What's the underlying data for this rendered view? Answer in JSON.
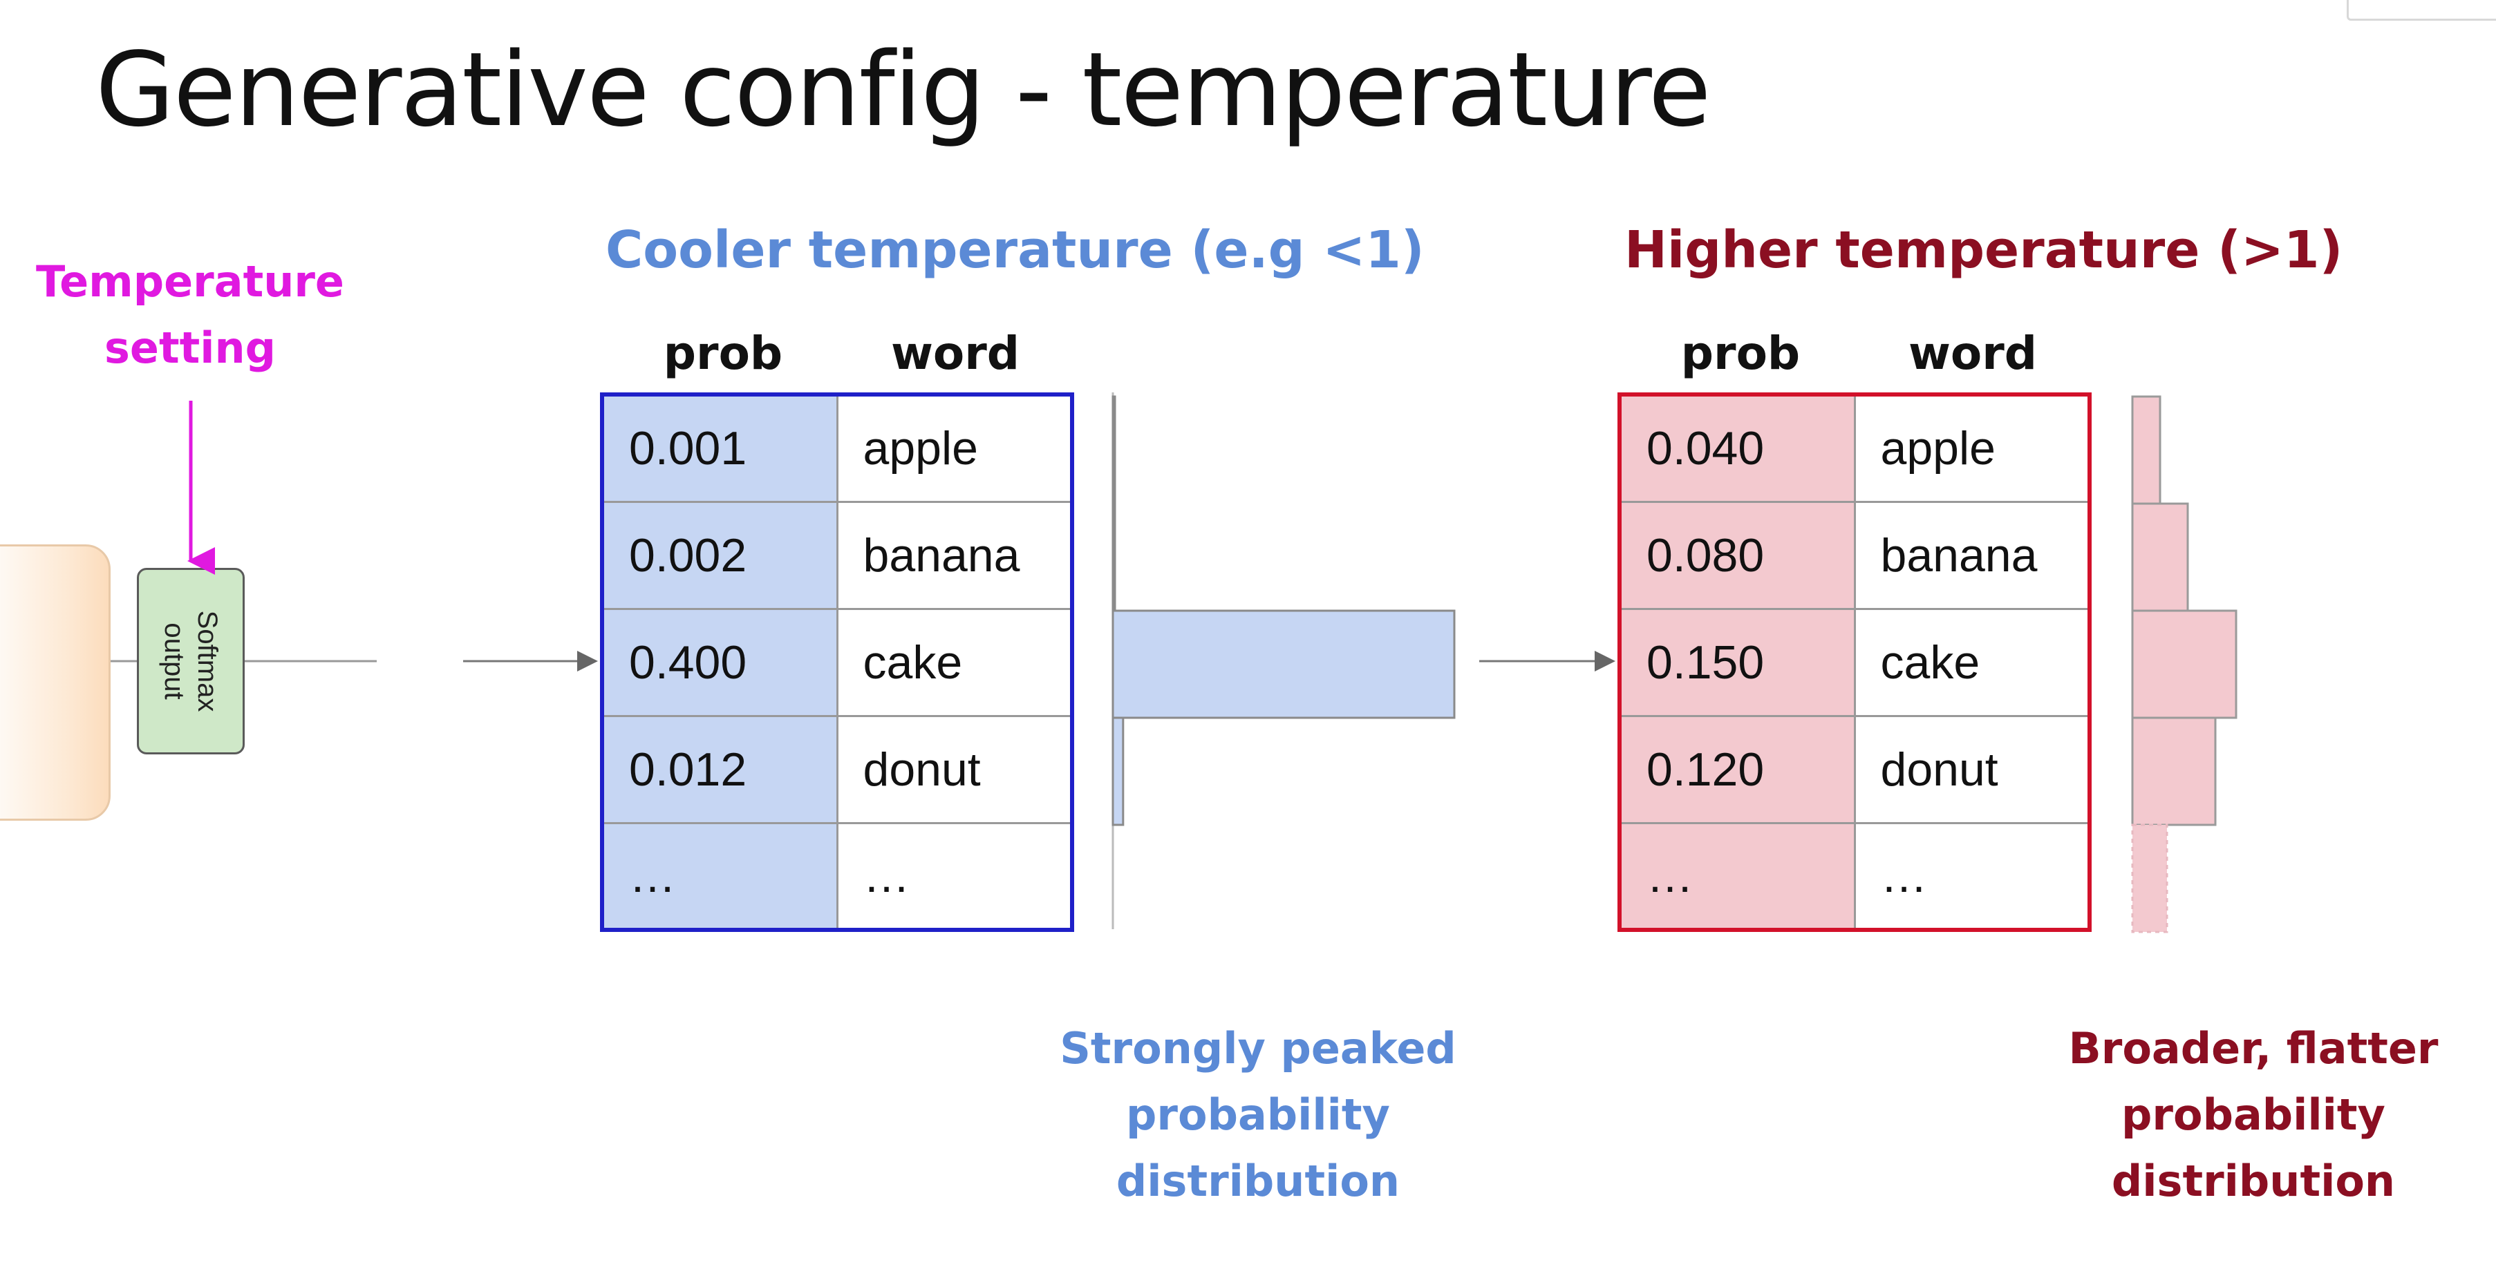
{
  "title": "Generative config - temperature",
  "temperature_setting": {
    "line1": "Temperature",
    "line2": "setting"
  },
  "softmax": {
    "line1": "Softmax",
    "line2": "output"
  },
  "cool": {
    "heading": "Cooler temperature (e.g <1)",
    "prob_header": "prob",
    "word_header": "word",
    "rows": [
      {
        "prob": "0.001",
        "word": "apple",
        "value": 0.001
      },
      {
        "prob": "0.002",
        "word": "banana",
        "value": 0.002
      },
      {
        "prob": "0.400",
        "word": "cake",
        "value": 0.4
      },
      {
        "prob": "0.012",
        "word": "donut",
        "value": 0.012
      },
      {
        "prob": "…",
        "word": "…",
        "value": 0
      }
    ],
    "caption": [
      "Strongly peaked",
      "probability",
      "distribution"
    ],
    "bar_color": "#c6d6f3",
    "border_color": "#1f20c8"
  },
  "hot": {
    "heading": "Higher temperature (>1)",
    "prob_header": "prob",
    "word_header": "word",
    "rows": [
      {
        "prob": "0.040",
        "word": "apple",
        "value": 0.04
      },
      {
        "prob": "0.080",
        "word": "banana",
        "value": 0.08
      },
      {
        "prob": "0.150",
        "word": "cake",
        "value": 0.15
      },
      {
        "prob": "0.120",
        "word": "donut",
        "value": 0.12
      },
      {
        "prob": "…",
        "word": "…",
        "value": 0.05
      }
    ],
    "caption": [
      "Broader, flatter",
      "probability",
      "distribution"
    ],
    "bar_color": "#f3c9cf",
    "border_color": "#d2112a"
  },
  "colors": {
    "temperature_setting": "#e019e0",
    "softmax_fill": "#cfe8c8"
  }
}
